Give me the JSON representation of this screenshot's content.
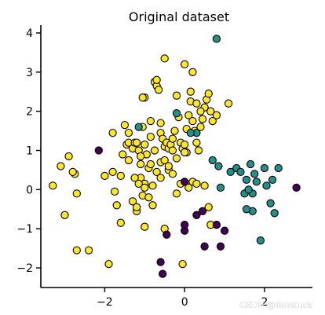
{
  "chart_data": {
    "type": "scatter",
    "title": "Original dataset",
    "xlabel": "",
    "ylabel": "",
    "xlim": [
      -3.6,
      3.2
    ],
    "ylim": [
      -2.5,
      4.2
    ],
    "xticks": [
      -2,
      0,
      2
    ],
    "xtick_labels": [
      "−2",
      "0",
      "2"
    ],
    "yticks": [
      -2,
      -1,
      0,
      1,
      2,
      3,
      4
    ],
    "ytick_labels": [
      "−2",
      "−1",
      "0",
      "1",
      "2",
      "3",
      "4"
    ],
    "grid": false,
    "legend": "none",
    "colors": {
      "class_0": "#fde725",
      "class_1": "#440154",
      "class_2": "#21918c"
    },
    "series": [
      {
        "color_key": "class_0",
        "x": [
          -3.3,
          -3.1,
          -2.9,
          -2.75,
          -2.7,
          -2.7,
          -3.0,
          -2.8,
          -2.4,
          -2.0,
          -1.9,
          -1.8,
          -1.7,
          -1.8,
          -1.6,
          -1.55,
          -1.5,
          -1.45,
          -1.4,
          -1.4,
          -1.3,
          -1.25,
          -1.2,
          -1.15,
          -1.1,
          -1.1,
          -1.05,
          -1.0,
          -1.05,
          -1.0,
          -0.95,
          -0.9,
          -0.85,
          -0.85,
          -0.75,
          -0.7,
          -0.65,
          -0.6,
          -0.6,
          -0.55,
          -0.5,
          -0.45,
          -0.4,
          -0.35,
          -0.3,
          -0.25,
          -0.2,
          -0.15,
          -0.1,
          -0.05,
          0.0,
          0.05,
          0.1,
          0.15,
          0.2,
          0.25,
          0.3,
          0.35,
          0.4,
          0.45,
          0.5,
          0.55,
          0.6,
          0.65,
          0.7,
          -1.3,
          -1.2,
          -1.0,
          -0.9,
          -0.8,
          -0.7,
          -0.6,
          -0.5,
          -0.4,
          -0.3,
          -0.2,
          -0.1,
          0.0,
          0.1,
          0.2,
          0.3,
          -1.6,
          -1.4,
          -1.2,
          -1.0,
          -0.8,
          -0.6,
          -0.4,
          -0.2,
          0.0,
          0.2,
          0.4,
          0.6,
          0.8,
          1.1,
          -0.05,
          -1.1,
          -1.25,
          -0.7,
          -0.5,
          0.3,
          -0.3,
          -1.75,
          -1.05,
          -0.5,
          -1.15,
          -0.85,
          0.15,
          0.05,
          0.5,
          0.65,
          -0.75,
          -1.0
        ],
        "y": [
          0.1,
          0.6,
          0.85,
          0.4,
          -0.1,
          -1.55,
          -0.65,
          0.45,
          -1.55,
          0.35,
          -1.9,
          0.45,
          -0.4,
          1.45,
          0.35,
          0.9,
          1.65,
          1.15,
          0.75,
          1.2,
          1.05,
          1.2,
          1.2,
          1.0,
          0.65,
          0.3,
          -0.15,
          2.35,
          1.6,
          1.15,
          0.9,
          0.55,
          1.75,
          1.35,
          2.75,
          2.65,
          2.55,
          1.7,
          1.45,
          1.3,
          1.1,
          1.2,
          1.05,
          1.15,
          1.0,
          1.5,
          2.4,
          1.85,
          1.2,
          1.05,
          1.15,
          0.95,
          1.9,
          2.25,
          1.75,
          1.5,
          1.2,
          1.0,
          1.6,
          1.8,
          2.1,
          2.3,
          2.45,
          2.0,
          1.75,
          -0.3,
          -0.55,
          0.15,
          -0.2,
          0.1,
          0.45,
          0.7,
          0.75,
          0.5,
          0.4,
          0.8,
          0.15,
          0.95,
          0.05,
          0.2,
          0.15,
          -0.85,
          1.45,
          -0.45,
          0.05,
          -0.4,
          0.3,
          0.6,
          -0.1,
          3.2,
          3.0,
          2.0,
          -0.45,
          1.9,
          2.2,
          -1.9,
          0.85,
          0.3,
          2.8,
          3.35,
          2.2,
          1.3,
          -0.05,
          2.35,
          -1.0,
          0.15,
          0.65,
          2.5,
          1.55,
          0.1,
          -0.9,
          1.0,
          -0.95
        ],
        "labels": []
      },
      {
        "color_key": "class_1",
        "x": [
          -2.15,
          -0.45,
          -0.55,
          -0.6,
          0.0,
          0.0,
          0.3,
          0.45,
          0.5,
          0.9,
          1.0,
          0.8,
          2.8,
          0.0
        ],
        "y": [
          1.0,
          -1.15,
          -2.15,
          -1.85,
          0.2,
          -1.05,
          -0.65,
          -0.55,
          -1.45,
          -1.45,
          -1.05,
          -0.9,
          0.05,
          -0.9
        ],
        "labels": []
      },
      {
        "color_key": "class_2",
        "x": [
          0.8,
          -1.15,
          -0.2,
          0.3,
          0.7,
          0.85,
          0.9,
          1.15,
          1.3,
          1.4,
          1.55,
          1.65,
          1.7,
          1.75,
          1.8,
          1.9,
          2.0,
          2.15,
          2.25,
          2.35,
          2.2,
          2.05,
          1.7,
          1.55,
          1.5,
          1.6,
          0.15
        ],
        "y": [
          3.85,
          1.6,
          1.95,
          1.45,
          0.75,
          0.6,
          0.05,
          0.45,
          0.55,
          0.45,
          0.25,
          0.65,
          -0.1,
          0.4,
          0.2,
          -1.3,
          0.55,
          -0.35,
          -0.6,
          0.55,
          0.25,
          0.1,
          -0.55,
          -0.5,
          -0.1,
          0.0,
          1.45
        ],
        "labels": []
      }
    ]
  },
  "watermark": "CSDN @fanstuck"
}
